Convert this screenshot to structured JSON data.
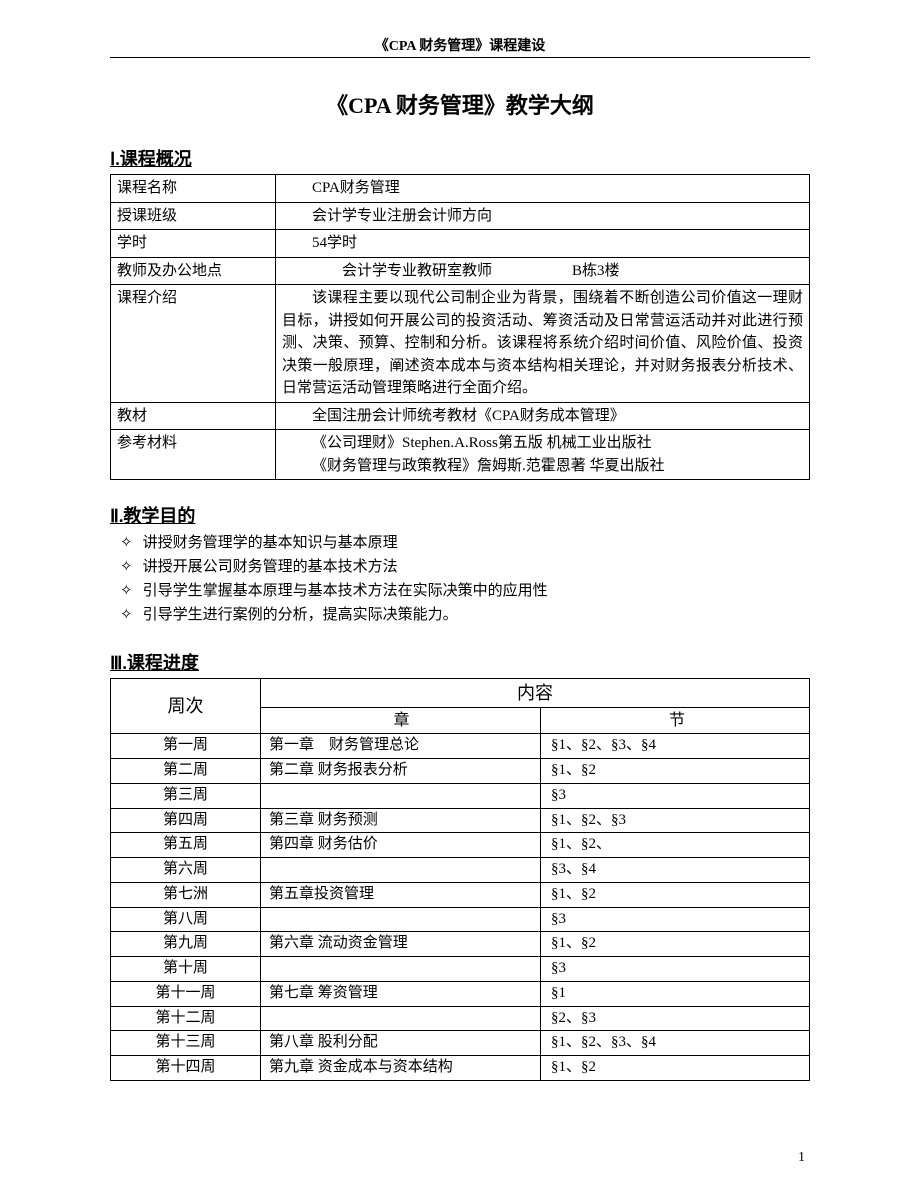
{
  "header": {
    "text": "《CPA 财务管理》课程建设"
  },
  "title": "《CPA 财务管理》教学大纲",
  "section1": {
    "heading": "Ⅰ.课程概况",
    "rows": {
      "course_name": {
        "label": "课程名称",
        "value": "CPA财务管理"
      },
      "class": {
        "label": "授课班级",
        "value": "会计学专业注册会计师方向"
      },
      "hours": {
        "label": "学时",
        "value": "54学时"
      },
      "teacher": {
        "label": "教师及办公地点",
        "value1": "会计学专业教研室教师",
        "value2": "B栋3楼"
      },
      "intro": {
        "label": "课程介绍",
        "value": "该课程主要以现代公司制企业为背景，围绕着不断创造公司价值这一理财目标，讲授如何开展公司的投资活动、筹资活动及日常营运活动并对此进行预测、决策、预算、控制和分析。该课程将系统介绍时间价值、风险价值、投资决策一般原理，阐述资本成本与资本结构相关理论，并对财务报表分析技术、日常营运活动管理策略进行全面介绍。"
      },
      "textbook": {
        "label": "教材",
        "value": "全国注册会计师统考教材《CPA财务成本管理》"
      },
      "reference": {
        "label": "参考材料",
        "value1": "《公司理财》Stephen.A.Ross第五版  机械工业出版社",
        "value2": "《财务管理与政策教程》詹姆斯.范霍恩著  华夏出版社"
      }
    }
  },
  "section2": {
    "heading": "Ⅱ.教学目的",
    "items": [
      "讲授财务管理学的基本知识与基本原理",
      "讲授开展公司财务管理的基本技术方法",
      "引导学生掌握基本原理与基本技术方法在实际决策中的应用性",
      "引导学生进行案例的分析，提高实际决策能力。"
    ]
  },
  "section3": {
    "heading": "Ⅲ.课程进度",
    "header_week": "周次",
    "header_content": "内容",
    "header_chapter": "章",
    "header_section": "节",
    "rows": [
      {
        "week": "第一周",
        "chapter": "第一章　财务管理总论",
        "section": "§1、§2、§3、§4"
      },
      {
        "week": "第二周",
        "chapter": "第二章  财务报表分析",
        "section": "§1、§2"
      },
      {
        "week": "第三周",
        "chapter": "",
        "section": "§3"
      },
      {
        "week": "第四周",
        "chapter": "第三章  财务预测",
        "section": "§1、§2、§3"
      },
      {
        "week": "第五周",
        "chapter": "第四章  财务估价",
        "section": "§1、§2、"
      },
      {
        "week": "第六周",
        "chapter": "",
        "section": "§3、§4"
      },
      {
        "week": "第七洲",
        "chapter": "第五章投资管理",
        "section": "§1、§2"
      },
      {
        "week": "第八周",
        "chapter": "",
        "section": "§3"
      },
      {
        "week": "第九周",
        "chapter": "第六章  流动资金管理",
        "section": "§1、§2"
      },
      {
        "week": "第十周",
        "chapter": "",
        "section": "§3"
      },
      {
        "week": "第十一周",
        "chapter": "第七章  筹资管理",
        "section": "§1"
      },
      {
        "week": "第十二周",
        "chapter": "",
        "section": "§2、§3"
      },
      {
        "week": "第十三周",
        "chapter": "第八章  股利分配",
        "section": "§1、§2、§3、§4"
      },
      {
        "week": "第十四周",
        "chapter": "第九章  资金成本与资本结构",
        "section": "§1、§2"
      }
    ]
  },
  "page_number": "1"
}
